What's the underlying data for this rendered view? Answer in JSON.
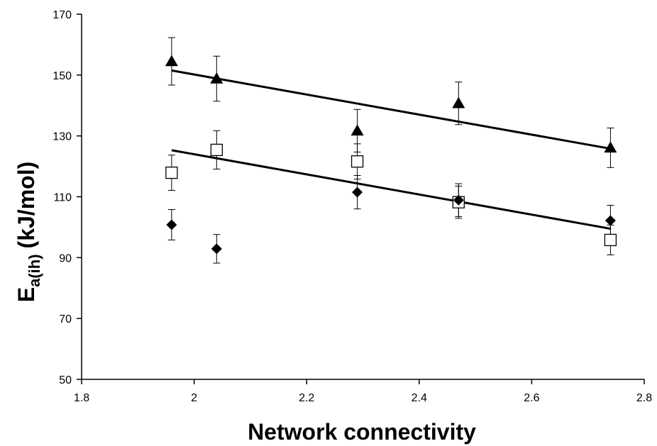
{
  "chart_data": {
    "type": "scatter",
    "xlabel": "Network connectivity",
    "ylabel": {
      "main": "E",
      "subscript": "a(ih)",
      "unit": "(kJ/mol)"
    },
    "xlim": [
      1.8,
      2.8
    ],
    "ylim": [
      50,
      170
    ],
    "xticks": [
      "1.8",
      "2",
      "2.2",
      "2.4",
      "2.6",
      "2.8"
    ],
    "yticks": [
      "50",
      "70",
      "90",
      "110",
      "130",
      "150",
      "170"
    ],
    "grid": false,
    "legend": "none",
    "series": [
      {
        "marker": "triangle-filled",
        "color": "#000000",
        "points": [
          {
            "x": 1.96,
            "y": 154.5,
            "err": 7.8
          },
          {
            "x": 2.04,
            "y": 148.8,
            "err": 7.4
          },
          {
            "x": 2.29,
            "y": 131.7,
            "err": 7.0
          },
          {
            "x": 2.47,
            "y": 140.7,
            "err": 7.0
          },
          {
            "x": 2.74,
            "y": 126.1,
            "err": 6.5
          }
        ],
        "trendline": {
          "x": [
            1.96,
            2.74
          ],
          "y": [
            151.5,
            125.8
          ]
        }
      },
      {
        "marker": "square-open",
        "color": "#000000",
        "points": [
          {
            "x": 1.96,
            "y": 117.9,
            "err": 5.8
          },
          {
            "x": 2.04,
            "y": 125.4,
            "err": 6.3
          },
          {
            "x": 2.29,
            "y": 121.6,
            "err": 5.8
          },
          {
            "x": 2.47,
            "y": 108.2,
            "err": 5.3
          },
          {
            "x": 2.74,
            "y": 95.8,
            "err": 4.9
          }
        ],
        "trendline": {
          "x": [
            1.96,
            2.74
          ],
          "y": [
            125.3,
            99.5
          ]
        }
      },
      {
        "marker": "diamond-filled",
        "color": "#000000",
        "points": [
          {
            "x": 1.96,
            "y": 100.8,
            "err": 5.0
          },
          {
            "x": 2.04,
            "y": 92.9,
            "err": 4.7
          },
          {
            "x": 2.29,
            "y": 111.5,
            "err": 5.5
          },
          {
            "x": 2.47,
            "y": 108.9,
            "err": 5.4
          },
          {
            "x": 2.74,
            "y": 102.2,
            "err": 5.0
          }
        ]
      }
    ]
  }
}
